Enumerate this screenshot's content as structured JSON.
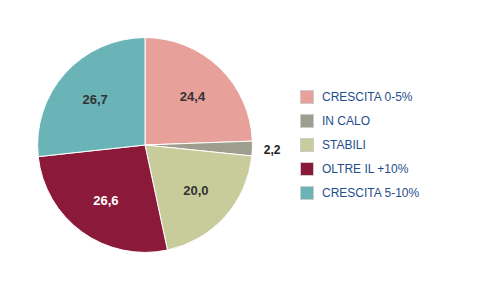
{
  "chart_data": {
    "type": "pie",
    "categories": [
      "CRESCITA 0-5%",
      "IN CALO",
      "STABILI",
      "OLTRE IL +10%",
      "CRESCITA 5-10%"
    ],
    "values": [
      24.4,
      2.2,
      20.0,
      26.6,
      26.7
    ],
    "value_labels": [
      "24,4",
      "2,2",
      "20,0",
      "26,6",
      "26,7"
    ],
    "colors": [
      "#e8a09a",
      "#9e9e8e",
      "#c8cc9a",
      "#8b1a3a",
      "#6ab4b8"
    ],
    "data_labels": true,
    "legend": "right"
  }
}
